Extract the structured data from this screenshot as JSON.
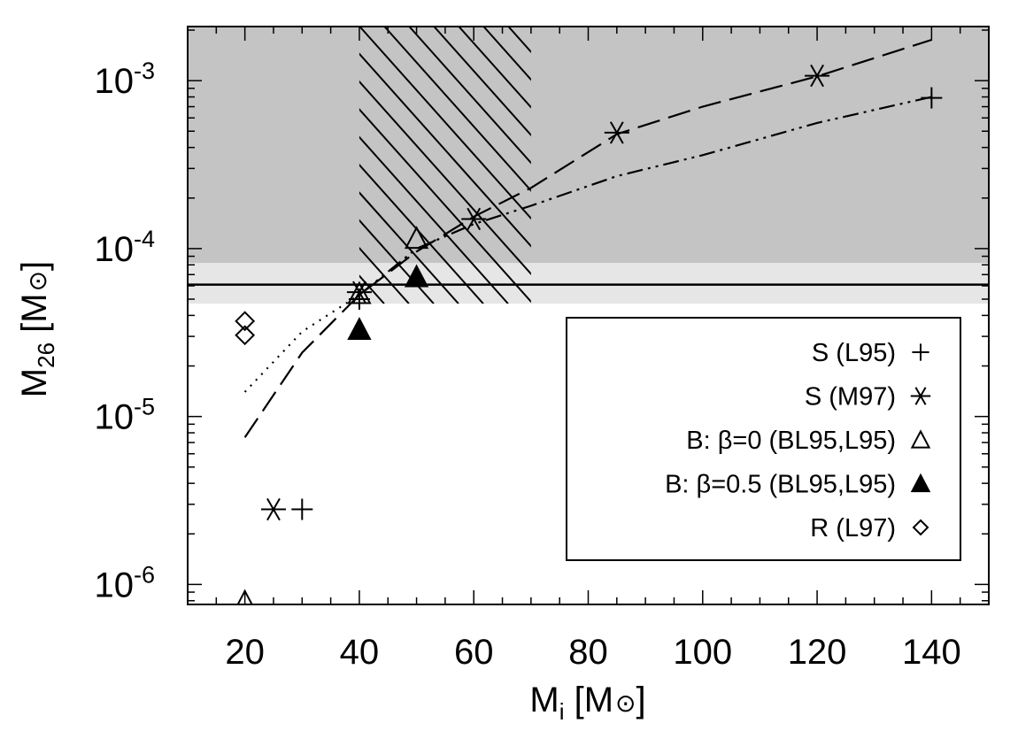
{
  "chart_data": {
    "type": "scatter",
    "x_axis": {
      "label_main": "M",
      "label_sub": "i",
      "label_unit_open": " [M",
      "label_unit_close": "]",
      "range": [
        10,
        150
      ],
      "ticks": [
        20,
        40,
        60,
        80,
        100,
        120,
        140
      ],
      "tick_labels": [
        "20",
        "40",
        "60",
        "80",
        "100",
        "120",
        "140"
      ]
    },
    "y_axis": {
      "label_main": "M",
      "label_sub": "26",
      "label_unit_open": " [M",
      "label_unit_close": "]",
      "scale": "log",
      "range": [
        7.6e-07,
        0.0021
      ],
      "ticks": [
        1e-06,
        1e-05,
        0.0001,
        0.001
      ],
      "tick_base": "10",
      "tick_exponents": [
        "-6",
        "-5",
        "-4",
        "-3"
      ]
    },
    "shaded_regions": [
      {
        "shade": "dark-gray",
        "y_range": [
          8.2e-05,
          0.0021
        ]
      },
      {
        "shade": "light-gray",
        "y_range": [
          4.7e-05,
          8.2e-05
        ]
      }
    ],
    "hatched_region": {
      "x_range": [
        40,
        70
      ]
    },
    "hline": 6.1e-05,
    "curves": [
      {
        "style": "long-dash",
        "x": [
          20,
          30,
          40,
          50,
          60,
          70,
          85,
          100,
          120,
          140
        ],
        "y": [
          7.5e-06,
          2.4e-05,
          5.3e-05,
          9.6e-05,
          0.000155,
          0.00023,
          0.00048,
          0.0007,
          0.00106,
          0.00175
        ]
      },
      {
        "style": "dots",
        "x": [
          20,
          30,
          40
        ],
        "y": [
          1.4e-05,
          3.2e-05,
          5.3e-05
        ]
      },
      {
        "style": "dash-dot",
        "x": [
          40,
          50,
          60,
          70,
          85,
          100,
          120,
          140
        ],
        "y": [
          5.3e-05,
          0.0001,
          0.00014,
          0.00018,
          0.00027,
          0.00036,
          0.00056,
          0.0008
        ]
      }
    ],
    "series": [
      {
        "name": "S (L95)",
        "marker": "plus",
        "x": [
          30,
          40,
          140
        ],
        "y": [
          2.8e-06,
          5e-05,
          0.00079
        ]
      },
      {
        "name": "S (M97)",
        "marker": "asterisk",
        "x": [
          25,
          40,
          60,
          85,
          120
        ],
        "y": [
          2.8e-06,
          5.5e-05,
          0.00015,
          0.00049,
          0.00107
        ]
      },
      {
        "name": "B: β=0 (BL95,L95)",
        "marker": "triangle-open",
        "x": [
          20,
          40,
          50
        ],
        "y": [
          7.9e-07,
          5.4e-05,
          0.000115
        ]
      },
      {
        "name": "B: β=0.5 (BL95,L95)",
        "marker": "triangle-filled",
        "x": [
          40,
          50
        ],
        "y": [
          3.3e-05,
          6.8e-05
        ]
      },
      {
        "name": "R (L97)",
        "marker": "diamond-open",
        "x": [
          20,
          20
        ],
        "y": [
          3.7e-05,
          3.05e-05
        ]
      }
    ],
    "legend": {
      "position": "lower-right"
    }
  }
}
